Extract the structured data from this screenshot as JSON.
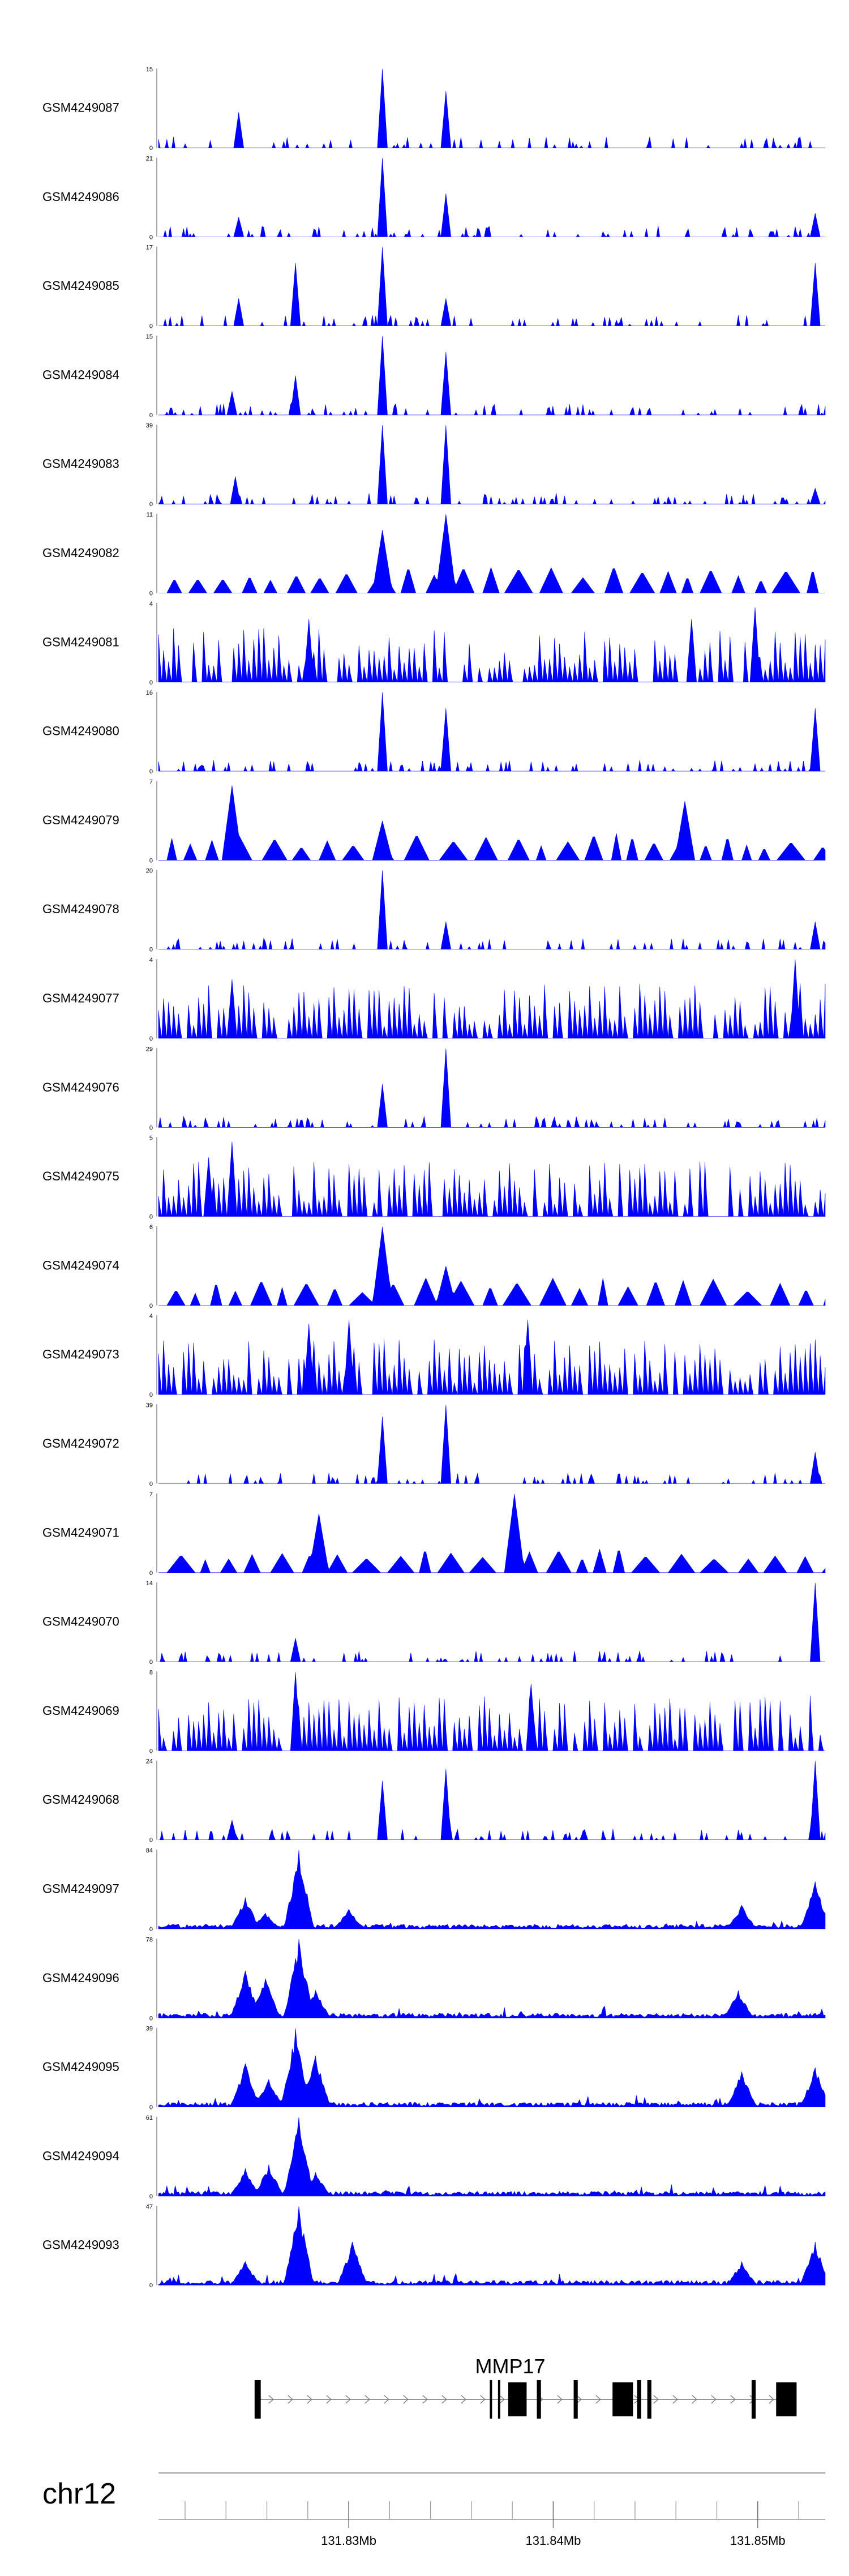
{
  "chart_data": {
    "type": "area",
    "track_color": "#0000ff",
    "region": {
      "chrom": "chr12",
      "start_mb": 131.8207,
      "end_mb": 131.8533
    },
    "tracks": [
      {
        "name": "GSM4249087",
        "ymax": "15",
        "ymin": "0",
        "pattern": "sparse",
        "peaks": [
          [
            0.12,
            0.45
          ],
          [
            0.335,
            1.0
          ],
          [
            0.43,
            0.72
          ]
        ],
        "values": []
      },
      {
        "name": "GSM4249086",
        "ymax": "21",
        "ymin": "0",
        "pattern": "sparse",
        "peaks": [
          [
            0.12,
            0.25
          ],
          [
            0.335,
            1.0
          ],
          [
            0.43,
            0.55
          ],
          [
            0.985,
            0.3
          ]
        ],
        "values": []
      },
      {
        "name": "GSM4249085",
        "ymax": "17",
        "ymin": "0",
        "pattern": "sparse",
        "peaks": [
          [
            0.12,
            0.35
          ],
          [
            0.205,
            0.8
          ],
          [
            0.335,
            1.0
          ],
          [
            0.43,
            0.35
          ],
          [
            0.985,
            0.8
          ]
        ],
        "values": []
      },
      {
        "name": "GSM4249084",
        "ymax": "15",
        "ymin": "0",
        "pattern": "sparse",
        "peaks": [
          [
            0.11,
            0.3
          ],
          [
            0.205,
            0.5
          ],
          [
            0.335,
            1.0
          ],
          [
            0.43,
            0.8
          ]
        ],
        "values": []
      },
      {
        "name": "GSM4249083",
        "ymax": "39",
        "ymin": "0",
        "pattern": "sparse",
        "peaks": [
          [
            0.115,
            0.35
          ],
          [
            0.335,
            1.0
          ],
          [
            0.43,
            1.0
          ],
          [
            0.985,
            0.2
          ]
        ],
        "values": []
      },
      {
        "name": "GSM4249082",
        "ymax": "11",
        "ymin": "0",
        "pattern": "triangles",
        "peaks": [
          [
            0.335,
            0.8
          ],
          [
            0.43,
            1.0
          ]
        ],
        "values": []
      },
      {
        "name": "GSM4249081",
        "ymax": "4",
        "ymin": "0",
        "pattern": "dense",
        "peaks": [
          [
            0.225,
            0.8
          ],
          [
            0.8,
            0.8
          ],
          [
            0.895,
            0.95
          ]
        ],
        "values": []
      },
      {
        "name": "GSM4249080",
        "ymax": "16",
        "ymin": "0",
        "pattern": "sparse",
        "peaks": [
          [
            0.335,
            1.0
          ],
          [
            0.43,
            0.8
          ],
          [
            0.985,
            0.8
          ]
        ],
        "values": []
      },
      {
        "name": "GSM4249079",
        "ymax": "7",
        "ymin": "0",
        "pattern": "triangles",
        "peaks": [
          [
            0.11,
            0.95
          ],
          [
            0.335,
            0.5
          ],
          [
            0.79,
            0.75
          ]
        ],
        "values": []
      },
      {
        "name": "GSM4249078",
        "ymax": "20",
        "ymin": "0",
        "pattern": "sparse",
        "peaks": [
          [
            0.335,
            1.0
          ],
          [
            0.43,
            0.35
          ],
          [
            0.985,
            0.35
          ]
        ],
        "values": []
      },
      {
        "name": "GSM4249077",
        "ymax": "4",
        "ymin": "0",
        "pattern": "dense",
        "peaks": [
          [
            0.11,
            0.75
          ],
          [
            0.955,
            1.0
          ]
        ],
        "values": []
      },
      {
        "name": "GSM4249076",
        "ymax": "29",
        "ymin": "0",
        "pattern": "sparse",
        "peaks": [
          [
            0.335,
            0.55
          ],
          [
            0.43,
            1.0
          ]
        ],
        "values": []
      },
      {
        "name": "GSM4249075",
        "ymax": "5",
        "ymin": "0",
        "pattern": "dense",
        "peaks": [
          [
            0.075,
            0.75
          ],
          [
            0.11,
            0.95
          ]
        ],
        "values": []
      },
      {
        "name": "GSM4249074",
        "ymax": "6",
        "ymin": "0",
        "pattern": "triangles",
        "peaks": [
          [
            0.335,
            1.0
          ],
          [
            0.43,
            0.5
          ]
        ],
        "values": []
      },
      {
        "name": "GSM4249073",
        "ymax": "4",
        "ymin": "0",
        "pattern": "dense",
        "peaks": [
          [
            0.225,
            0.9
          ],
          [
            0.285,
            0.95
          ],
          [
            0.555,
            0.95
          ]
        ],
        "values": []
      },
      {
        "name": "GSM4249072",
        "ymax": "39",
        "ymin": "0",
        "pattern": "sparse",
        "peaks": [
          [
            0.335,
            0.85
          ],
          [
            0.43,
            1.0
          ],
          [
            0.985,
            0.4
          ]
        ],
        "values": []
      },
      {
        "name": "GSM4249071",
        "ymax": "7",
        "ymin": "0",
        "pattern": "triangles",
        "peaks": [
          [
            0.24,
            0.75
          ],
          [
            0.535,
            1.0
          ]
        ],
        "values": []
      },
      {
        "name": "GSM4249070",
        "ymax": "14",
        "ymin": "0",
        "pattern": "sparse",
        "peaks": [
          [
            0.205,
            0.3
          ],
          [
            0.985,
            1.0
          ]
        ],
        "values": []
      },
      {
        "name": "GSM4249069",
        "ymax": "8",
        "ymin": "0",
        "pattern": "dense",
        "peaks": [
          [
            0.205,
            1.0
          ],
          [
            0.56,
            0.85
          ]
        ],
        "values": []
      },
      {
        "name": "GSM4249068",
        "ymax": "24",
        "ymin": "0",
        "pattern": "sparse",
        "peaks": [
          [
            0.11,
            0.25
          ],
          [
            0.335,
            0.75
          ],
          [
            0.43,
            0.9
          ],
          [
            0.985,
            1.0
          ]
        ],
        "values": []
      },
      {
        "name": "GSM4249097",
        "ymax": "84",
        "ymin": "0",
        "pattern": "broad",
        "peaks": [
          [
            0.13,
            0.4
          ],
          [
            0.16,
            0.2
          ],
          [
            0.21,
            1.0
          ],
          [
            0.285,
            0.25
          ],
          [
            0.875,
            0.3
          ],
          [
            0.985,
            0.6
          ]
        ],
        "values": []
      },
      {
        "name": "GSM4249096",
        "ymax": "78",
        "ymin": "0",
        "pattern": "broad",
        "peaks": [
          [
            0.13,
            0.6
          ],
          [
            0.16,
            0.5
          ],
          [
            0.21,
            1.0
          ],
          [
            0.235,
            0.35
          ],
          [
            0.87,
            0.35
          ]
        ],
        "values": []
      },
      {
        "name": "GSM4249095",
        "ymax": "39",
        "ymin": "0",
        "pattern": "broad",
        "peaks": [
          [
            0.13,
            0.55
          ],
          [
            0.165,
            0.35
          ],
          [
            0.205,
            1.0
          ],
          [
            0.235,
            0.65
          ],
          [
            0.875,
            0.45
          ],
          [
            0.985,
            0.5
          ]
        ],
        "values": []
      },
      {
        "name": "GSM4249094",
        "ymax": "61",
        "ymin": "0",
        "pattern": "broad",
        "peaks": [
          [
            0.13,
            0.35
          ],
          [
            0.165,
            0.4
          ],
          [
            0.21,
            1.0
          ],
          [
            0.235,
            0.3
          ]
        ],
        "values": []
      },
      {
        "name": "GSM4249093",
        "ymax": "47",
        "ymin": "0",
        "pattern": "broad",
        "peaks": [
          [
            0.13,
            0.3
          ],
          [
            0.21,
            1.0
          ],
          [
            0.29,
            0.55
          ],
          [
            0.875,
            0.3
          ],
          [
            0.985,
            0.55
          ]
        ],
        "values": []
      }
    ],
    "gene": {
      "name": "MMP17",
      "strand": "+",
      "exons_mb": [
        [
          131.8254,
          131.8257
        ],
        [
          131.8369,
          131.837
        ],
        [
          131.8373,
          131.8374
        ],
        [
          131.8378,
          131.8387
        ],
        [
          131.8392,
          131.8394
        ],
        [
          131.841,
          131.8412
        ],
        [
          131.8429,
          131.8439
        ],
        [
          131.8441,
          131.8443
        ],
        [
          131.8446,
          131.8448
        ],
        [
          131.8497,
          131.8499
        ],
        [
          131.8509,
          131.8519
        ]
      ]
    },
    "x_axis": {
      "chrom_label": "chr12",
      "tick_labels": [
        {
          "mb": 131.83,
          "label": "131.83Mb"
        },
        {
          "mb": 131.84,
          "label": "131.84Mb"
        },
        {
          "mb": 131.85,
          "label": "131.85Mb"
        }
      ],
      "minor_ticks_mb": [
        131.822,
        131.824,
        131.826,
        131.828,
        131.83,
        131.832,
        131.834,
        131.836,
        131.838,
        131.84,
        131.842,
        131.844,
        131.846,
        131.848,
        131.85,
        131.852
      ]
    }
  }
}
